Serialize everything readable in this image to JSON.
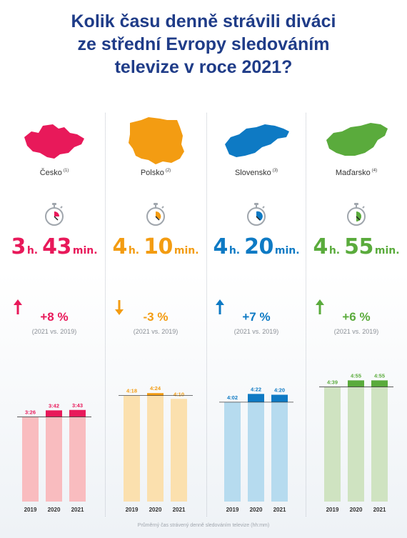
{
  "title": "Kolik času denně strávili diváci\nze střední Evropy sledováním\ntelevize v roce 2021?",
  "footnote": "Průměrný čas strávený denně sledováním televize (hh:mm)",
  "comparison_label": "(2021 vs. 2019)",
  "unit_hours": "h.",
  "unit_minutes": "min.",
  "chart_data": {
    "type": "bar",
    "categories": [
      "2019",
      "2020",
      "2021"
    ],
    "value_unit": "hh:mm",
    "ylabel": "",
    "series": [
      {
        "name": "Česko",
        "footnote_mark": "(1)",
        "color": "#e8195a",
        "light_color": "#f9bcbf",
        "labels": [
          "3:26",
          "3:42",
          "3:43"
        ],
        "values_minutes": [
          206,
          222,
          223
        ],
        "total_hours": "3",
        "total_minutes": "43",
        "change": "+8 %",
        "direction": "up"
      },
      {
        "name": "Polsko",
        "footnote_mark": "(2)",
        "color": "#f39c12",
        "light_color": "#fbe0ae",
        "labels": [
          "4:18",
          "4:24",
          "4:10"
        ],
        "values_minutes": [
          258,
          264,
          250
        ],
        "total_hours": "4",
        "total_minutes": "10",
        "change": "-3 %",
        "direction": "down"
      },
      {
        "name": "Slovensko",
        "footnote_mark": "(3)",
        "color": "#0e7ac4",
        "light_color": "#b6dbef",
        "labels": [
          "4:02",
          "4:22",
          "4:20"
        ],
        "values_minutes": [
          242,
          262,
          260
        ],
        "total_hours": "4",
        "total_minutes": "20",
        "change": "+7 %",
        "direction": "up"
      },
      {
        "name": "Maďarsko",
        "footnote_mark": "(4)",
        "color": "#5aab3c",
        "light_color": "#cfe3c1",
        "labels": [
          "4:39",
          "4:55",
          "4:55"
        ],
        "values_minutes": [
          279,
          295,
          295
        ],
        "total_hours": "4",
        "total_minutes": "55",
        "change": "+6 %",
        "direction": "up"
      }
    ]
  }
}
